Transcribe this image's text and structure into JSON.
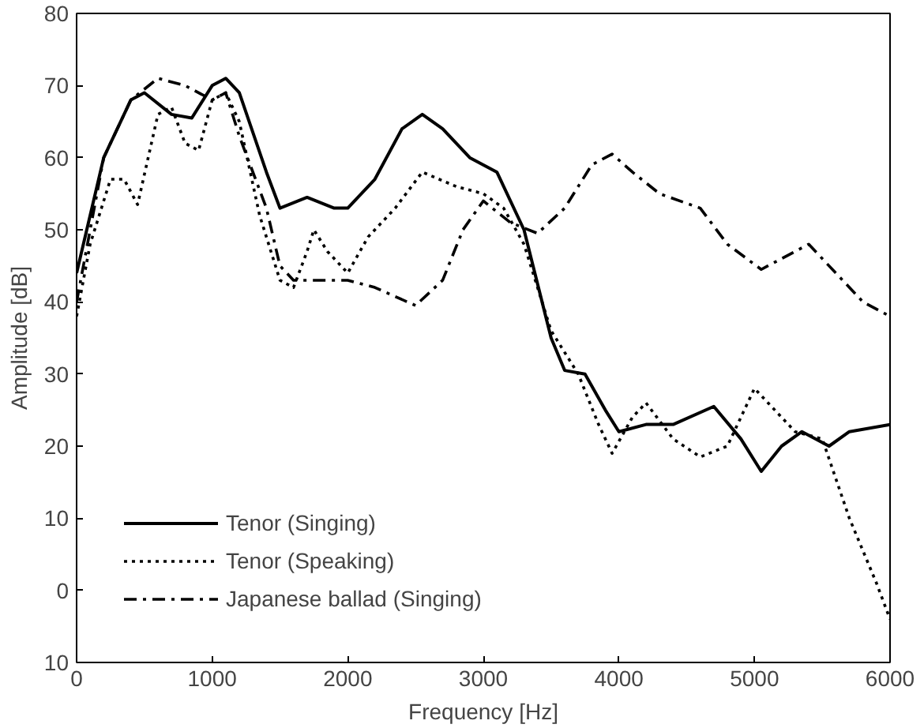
{
  "chart_data": {
    "type": "line",
    "xlabel": "Frequency [Hz]",
    "ylabel": "Amplitude [dB]",
    "xlim": [
      0,
      6000
    ],
    "ylim": [
      -10,
      80
    ],
    "xticks": [
      0,
      1000,
      2000,
      3000,
      4000,
      5000,
      {
        "value": 6000,
        "label": "6000"
      }
    ],
    "yticks": [
      {
        "value": -10,
        "label": "10"
      },
      0,
      10,
      20,
      30,
      40,
      50,
      60,
      70,
      80
    ],
    "grid": false,
    "legend": "bottom left",
    "marker": "none",
    "series": [
      {
        "name": "Tenor (Singing)",
        "color": "#000000",
        "line_style": "solid",
        "x": [
          0,
          200,
          400,
          500,
          700,
          850,
          1000,
          1100,
          1200,
          1400,
          1500,
          1700,
          1900,
          2000,
          2200,
          2400,
          2550,
          2700,
          2900,
          3100,
          3300,
          3500,
          3600,
          3750,
          3900,
          4000,
          4200,
          4400,
          4700,
          4900,
          5050,
          5200,
          5350,
          5550,
          5700,
          6000
        ],
        "values": [
          44,
          60,
          68,
          69,
          66,
          65.5,
          70,
          71,
          69,
          58,
          53,
          54.5,
          53,
          53,
          57,
          64,
          66,
          64,
          60,
          58,
          50,
          35,
          30.5,
          30,
          25,
          22,
          23,
          23,
          25.5,
          21,
          16.5,
          20,
          22,
          20,
          22,
          23
        ]
      },
      {
        "name": "Tenor (Speaking)",
        "color": "#000000",
        "line_style": "dotted",
        "x": [
          0,
          100,
          250,
          350,
          450,
          600,
          700,
          800,
          900,
          1000,
          1100,
          1200,
          1350,
          1500,
          1600,
          1700,
          1750,
          1850,
          2000,
          2150,
          2350,
          2550,
          2800,
          3000,
          3150,
          3300,
          3500,
          3700,
          3850,
          3950,
          4100,
          4200,
          4400,
          4600,
          4800,
          5000,
          5100,
          5300,
          5500,
          5700,
          5900,
          6000
        ],
        "values": [
          38,
          48,
          57,
          57,
          53.5,
          66,
          67,
          62,
          61,
          68,
          69,
          65,
          52,
          43,
          42,
          47,
          50,
          47,
          44,
          49,
          53,
          58,
          56,
          55,
          53,
          48,
          36,
          30,
          23,
          19,
          24,
          26,
          21,
          18.5,
          20,
          28,
          26,
          22,
          21,
          10,
          1,
          -4
        ]
      },
      {
        "name": "Japanese ballad (Singing)",
        "color": "#000000",
        "line_style": "dashed",
        "x": [
          0,
          200,
          400,
          600,
          800,
          1000,
          1100,
          1200,
          1400,
          1500,
          1600,
          1800,
          2000,
          2200,
          2500,
          2700,
          2850,
          3000,
          3200,
          3400,
          3600,
          3800,
          3950,
          4100,
          4300,
          4600,
          4800,
          5050,
          5200,
          5400,
          5600,
          5800,
          6000
        ],
        "values": [
          40,
          60,
          68,
          71,
          70,
          68,
          69,
          63,
          53,
          45,
          43,
          43,
          43,
          42,
          39.5,
          43,
          50,
          54,
          51,
          49.5,
          53,
          59,
          60.5,
          58,
          55,
          53,
          48,
          44.5,
          46,
          48,
          44,
          40,
          38
        ]
      }
    ]
  }
}
